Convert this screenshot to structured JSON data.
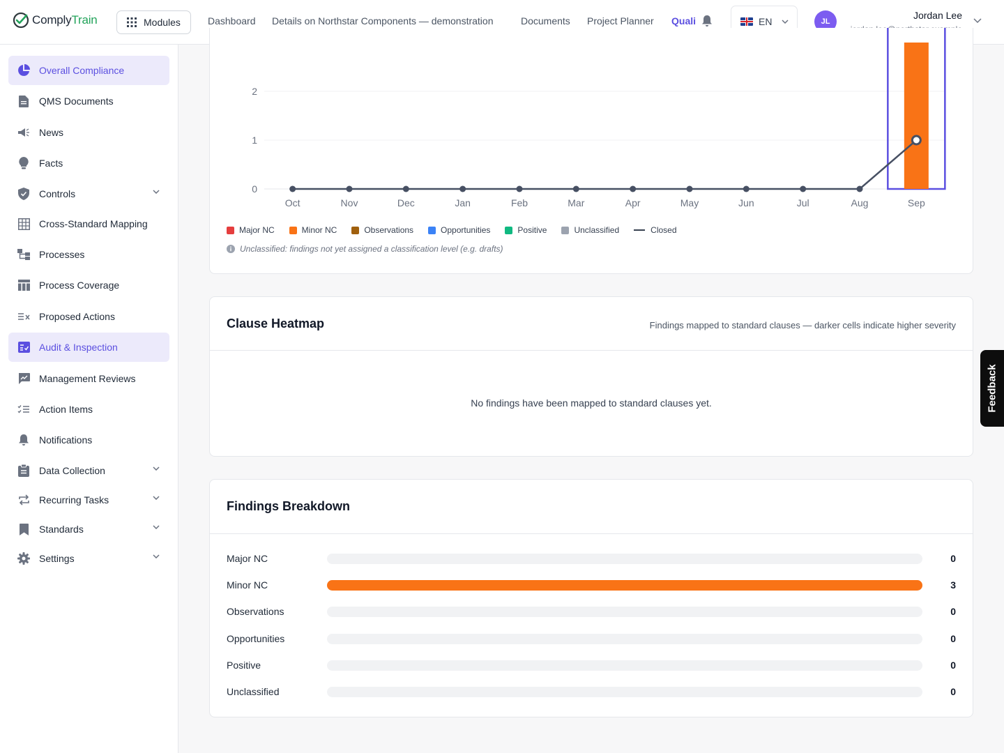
{
  "brand": {
    "name_a": "Comply",
    "name_b": "Train"
  },
  "header": {
    "modules_label": "Modules",
    "nav": [
      "Dashboard",
      "Details on Northstar Components — demonstration",
      "Documents",
      "Project Planner",
      "Quali"
    ],
    "language": "EN",
    "user": {
      "initials": "JL",
      "name": "Jordan Lee",
      "email": "jordan.lee@northstar.example"
    }
  },
  "sidebar": {
    "items": [
      {
        "label": "Overall Compliance",
        "icon": "pie-chart-icon",
        "active": true
      },
      {
        "label": "QMS Documents",
        "icon": "document-icon"
      },
      {
        "label": "News",
        "icon": "megaphone-icon"
      },
      {
        "label": "Facts",
        "icon": "lightbulb-icon"
      },
      {
        "label": "Controls",
        "icon": "shield-icon",
        "expandable": true
      },
      {
        "label": "Cross-Standard Mapping",
        "icon": "table-grid-icon"
      },
      {
        "label": "Processes",
        "icon": "process-flow-icon"
      },
      {
        "label": "Process Coverage",
        "icon": "coverage-table-icon"
      },
      {
        "label": "Proposed Actions",
        "icon": "list-x-icon"
      },
      {
        "label": "Audit & Inspection",
        "icon": "audit-checklist-icon",
        "active": true
      },
      {
        "label": "Management Reviews",
        "icon": "review-chart-icon"
      },
      {
        "label": "Action Items",
        "icon": "checklist-icon"
      },
      {
        "label": "Notifications",
        "icon": "bell-icon"
      },
      {
        "label": "Data Collection",
        "icon": "clipboard-icon",
        "expandable": true
      },
      {
        "label": "Recurring Tasks",
        "icon": "repeat-icon",
        "expandable": true
      },
      {
        "label": "Standards",
        "icon": "bookmark-icon",
        "expandable": true
      },
      {
        "label": "Settings",
        "icon": "gear-icon",
        "expandable": true
      }
    ]
  },
  "colors": {
    "accent": "#5b4fe0",
    "major_nc": "#e53e3e",
    "minor_nc": "#f97316",
    "observations": "#a0600e",
    "opportunities": "#3b82f6",
    "positive": "#10b981",
    "unclassified": "#9ca3af",
    "closed": "#374151"
  },
  "chart_data": {
    "type": "bar",
    "categories": [
      "Oct",
      "Nov",
      "Dec",
      "Jan",
      "Feb",
      "Mar",
      "Apr",
      "May",
      "Jun",
      "Jul",
      "Aug",
      "Sep"
    ],
    "y_ticks": [
      "0",
      "1",
      "2"
    ],
    "ylim": [
      0,
      3
    ],
    "series": [
      {
        "name": "Major NC",
        "values": [
          0,
          0,
          0,
          0,
          0,
          0,
          0,
          0,
          0,
          0,
          0,
          0
        ]
      },
      {
        "name": "Minor NC",
        "values": [
          0,
          0,
          0,
          0,
          0,
          0,
          0,
          0,
          0,
          0,
          0,
          3
        ]
      },
      {
        "name": "Observations",
        "values": [
          0,
          0,
          0,
          0,
          0,
          0,
          0,
          0,
          0,
          0,
          0,
          0
        ]
      },
      {
        "name": "Opportunities",
        "values": [
          0,
          0,
          0,
          0,
          0,
          0,
          0,
          0,
          0,
          0,
          0,
          0
        ]
      },
      {
        "name": "Positive",
        "values": [
          0,
          0,
          0,
          0,
          0,
          0,
          0,
          0,
          0,
          0,
          0,
          0
        ]
      },
      {
        "name": "Unclassified",
        "values": [
          0,
          0,
          0,
          0,
          0,
          0,
          0,
          0,
          0,
          0,
          0,
          0
        ]
      },
      {
        "name": "Closed",
        "type": "line",
        "values": [
          0,
          0,
          0,
          0,
          0,
          0,
          0,
          0,
          0,
          0,
          0,
          1
        ]
      }
    ],
    "highlighted_category": "Sep",
    "grid": true,
    "legend_position": "bottom-left"
  },
  "legend_note": "Unclassified: findings not yet assigned a classification level (e.g. drafts)",
  "heatmap": {
    "title": "Clause Heatmap",
    "subtitle": "Findings mapped to standard clauses — darker cells indicate higher severity",
    "empty_message": "No findings have been mapped to standard clauses yet."
  },
  "breakdown": {
    "title": "Findings Breakdown",
    "rows": [
      {
        "label": "Major NC",
        "count": "0",
        "fraction": 0
      },
      {
        "label": "Minor NC",
        "count": "3",
        "fraction": 1
      },
      {
        "label": "Observations",
        "count": "0",
        "fraction": 0
      },
      {
        "label": "Opportunities",
        "count": "0",
        "fraction": 0
      },
      {
        "label": "Positive",
        "count": "0",
        "fraction": 0
      },
      {
        "label": "Unclassified",
        "count": "0",
        "fraction": 0
      }
    ]
  },
  "feedback_label": "Feedback"
}
